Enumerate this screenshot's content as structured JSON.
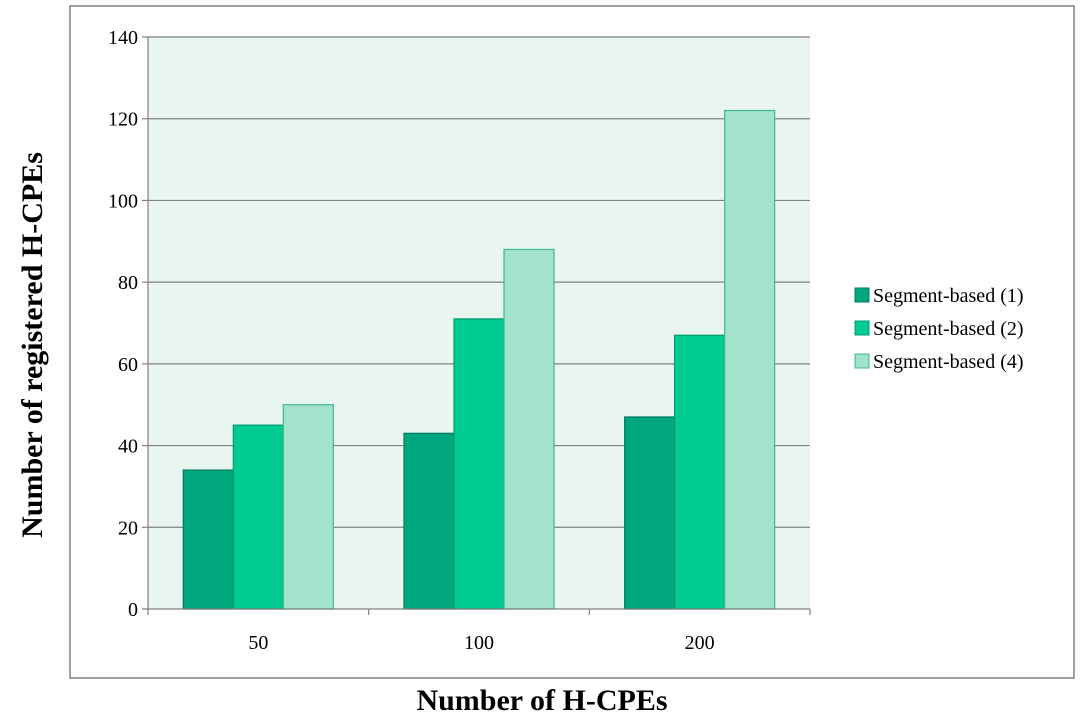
{
  "chart_data": {
    "type": "bar",
    "title": "",
    "xlabel": "Number of H-CPEs",
    "ylabel": "Number of registered H-CPEs",
    "categories": [
      "50",
      "100",
      "200"
    ],
    "series": [
      {
        "name": "Segment-based (1)",
        "values": [
          34,
          43,
          47
        ]
      },
      {
        "name": "Segment-based (2)",
        "values": [
          45,
          71,
          67
        ]
      },
      {
        "name": "Segment-based (4)",
        "values": [
          50,
          88,
          122
        ]
      }
    ],
    "ylim": [
      0,
      140
    ],
    "yticks": [
      "0",
      "20",
      "40",
      "60",
      "80",
      "100",
      "120",
      "140"
    ],
    "grid": true,
    "legend_position": "right",
    "colors": {
      "series": [
        "#00a67e",
        "#00cc92",
        "#a3e2cb"
      ],
      "series_border": [
        "#007a5c",
        "#009a6e",
        "#3cb88f"
      ],
      "plot_background": "#e8f6ef",
      "gridline": "#808080",
      "frame": "#808080"
    }
  }
}
